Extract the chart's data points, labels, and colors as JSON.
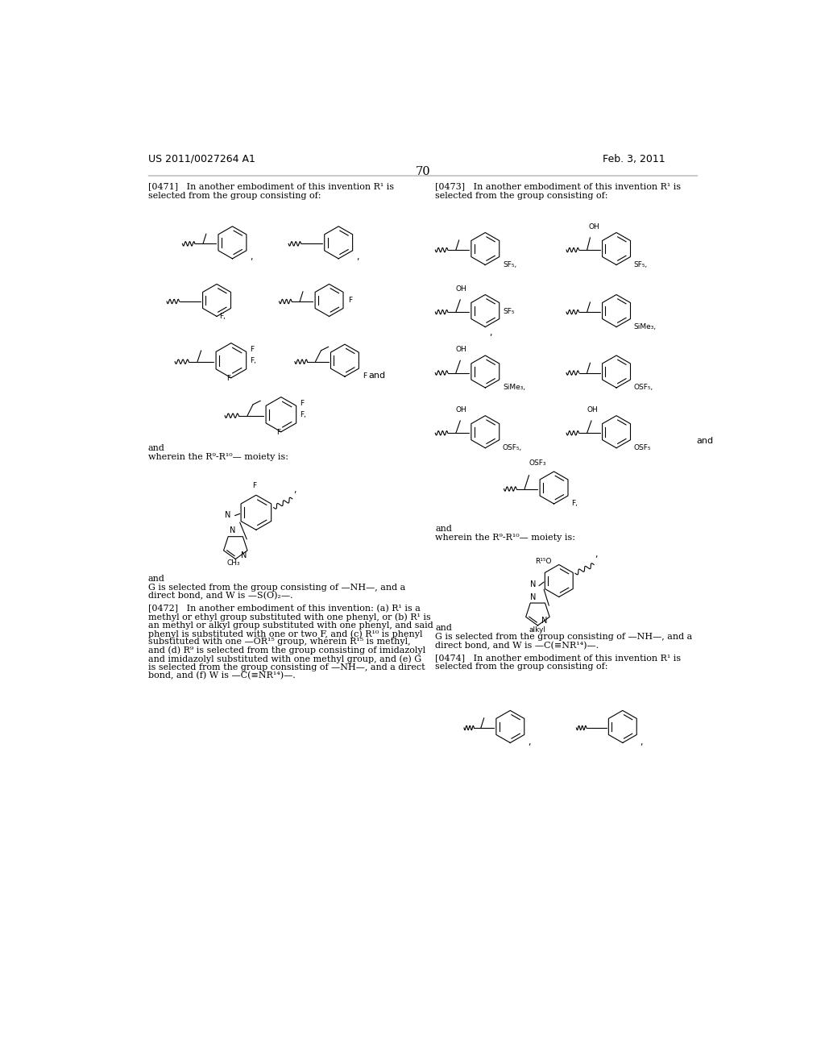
{
  "page_header_left": "US 2011/0027264 A1",
  "page_header_right": "Feb. 3, 2011",
  "page_number": "70",
  "background_color": "#ffffff",
  "text_color": "#000000",
  "font_size_body": 8.0,
  "font_size_header": 9.0,
  "font_size_page_num": 10.5
}
